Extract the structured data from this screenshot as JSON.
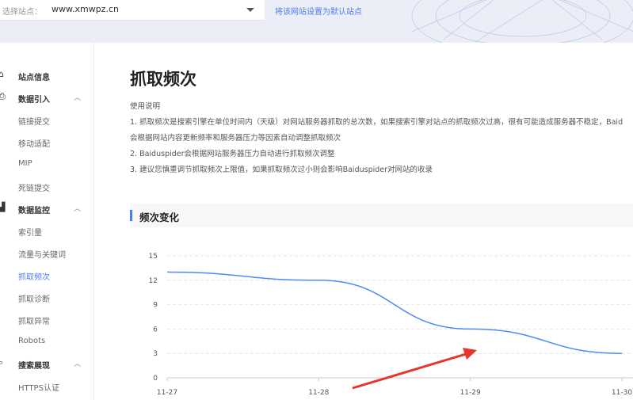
{
  "topbar": {
    "site_label": "选择站点：",
    "site_value": "www.xmwpz.cn",
    "set_default_link": "将该网站设置为默认站点"
  },
  "sidebar": {
    "items": [
      {
        "label": "站点信息",
        "type": "group",
        "icon": "home-icon"
      },
      {
        "label": "数据引入",
        "type": "group",
        "icon": "import-icon",
        "expanded": true
      },
      {
        "label": "链接提交",
        "type": "item"
      },
      {
        "label": "移动适配",
        "type": "item"
      },
      {
        "label": "MIP",
        "type": "item"
      },
      {
        "label": "死链提交",
        "type": "item"
      },
      {
        "label": "数据监控",
        "type": "group",
        "icon": "chart-icon",
        "expanded": true
      },
      {
        "label": "索引量",
        "type": "item"
      },
      {
        "label": "流量与关键词",
        "type": "item"
      },
      {
        "label": "抓取频次",
        "type": "item",
        "active": true
      },
      {
        "label": "抓取诊断",
        "type": "item"
      },
      {
        "label": "抓取异常",
        "type": "item"
      },
      {
        "label": "Robots",
        "type": "item"
      },
      {
        "label": "搜索展现",
        "type": "group",
        "icon": "search-display-icon",
        "expanded": true
      },
      {
        "label": "HTTPS认证",
        "type": "item"
      }
    ]
  },
  "main": {
    "title": "抓取频次",
    "usage_title": "使用说明",
    "usage": [
      "1. 抓取频次是搜索引擎在单位时间内（天级）对网站服务器抓取的总次数，如果搜索引擎对站点的抓取频次过高，很有可能造成服务器不稳定，Baid",
      "会根据网站内容更新频率和服务器压力等因素自动调整抓取频次",
      "2. Baiduspider会根据网站服务器压力自动进行抓取频次调整",
      "3. 建议您慎重调节抓取频次上限值，如果抓取频次过小则会影响Baiduspider对网站的收录"
    ],
    "section_title": "频次变化"
  },
  "colors": {
    "accent": "#4e7cf2",
    "line": "#4e8af7",
    "arrow": "#e8342a"
  },
  "chart_data": {
    "type": "line",
    "categories": [
      "11-27",
      "11-28",
      "11-29",
      "11-30"
    ],
    "values": [
      13,
      12,
      6,
      3
    ],
    "yticks": [
      0,
      3,
      6,
      9,
      12,
      15
    ],
    "ylim": [
      0,
      15
    ],
    "grid": true,
    "annotation": "red arrow pointing at 11-29 point"
  }
}
